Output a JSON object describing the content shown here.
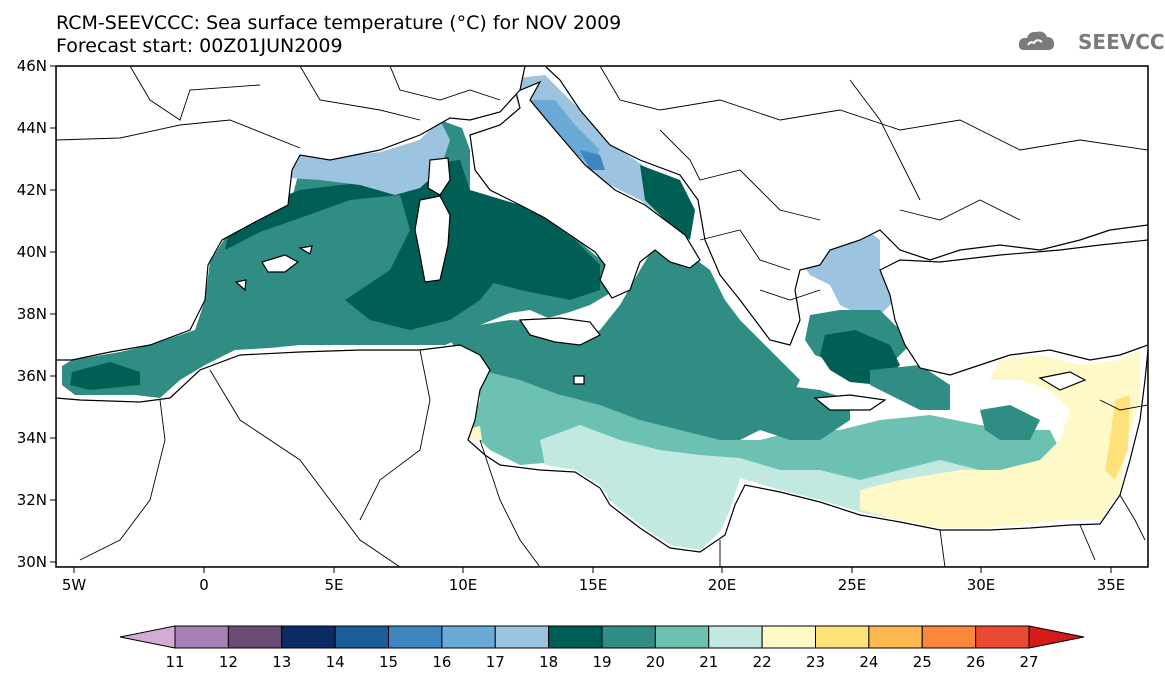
{
  "title_line1": "RCM-SEEVCCC: Sea surface temperature (°C) for NOV 2009",
  "title_line2": "Forecast start: 00Z01JUN2009",
  "logo_text": "SEEVCCC",
  "lat_labels": [
    "46N",
    "44N",
    "42N",
    "40N",
    "38N",
    "36N",
    "34N",
    "32N",
    "30N"
  ],
  "lon_labels": [
    "5W",
    "0",
    "5E",
    "10E",
    "15E",
    "20E",
    "25E",
    "30E",
    "35E"
  ],
  "colorbar": {
    "values": [
      "11",
      "12",
      "13",
      "14",
      "15",
      "16",
      "17",
      "18",
      "19",
      "20",
      "21",
      "22",
      "23",
      "24",
      "25",
      "26",
      "27"
    ],
    "colors": [
      "#d6aad6",
      "#a57fb5",
      "#6b4a74",
      "#0b2c66",
      "#1a5d99",
      "#3d86bf",
      "#6aaad6",
      "#9cc3e0",
      "#005f55",
      "#2f8d84",
      "#6cc1b2",
      "#c2e8e2",
      "#fff9c8",
      "#ffe17a",
      "#fdb84f",
      "#fb863c",
      "#ea4a34",
      "#d61a1a"
    ]
  },
  "legend_colors": {
    "land": "#ffffff",
    "coast": "#000000"
  }
}
